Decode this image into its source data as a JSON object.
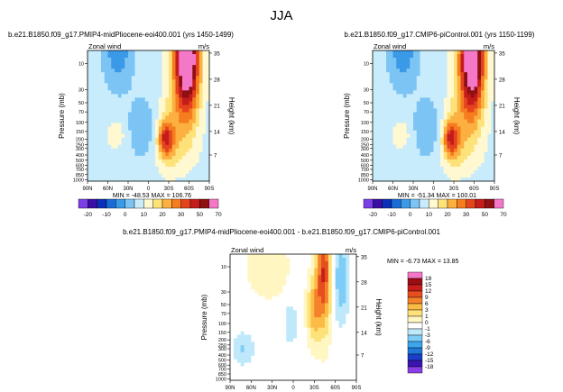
{
  "page_title": "JJA",
  "colors": {
    "top_levels": [
      "#7b3fe6",
      "#3a0fa6",
      "#0b2fb8",
      "#1b6bd6",
      "#3b9ae8",
      "#7cc4f4",
      "#c8ecfb",
      "#fff8d0",
      "#fde27a",
      "#fbb040",
      "#f57d1f",
      "#e5431e",
      "#c31c1b",
      "#8e1013",
      "#f577c8"
    ],
    "diff_levels": [
      "#8a3fe6",
      "#3b15b0",
      "#1a3ec7",
      "#1f77d8",
      "#3ba6ec",
      "#7dcdf7",
      "#bfe9fb",
      "#ffffff",
      "#fff6c2",
      "#fde27a",
      "#fbbb45",
      "#f4822a",
      "#e74e1f",
      "#c81e1b",
      "#9a0d12",
      "#f577c8"
    ]
  },
  "panels": [
    {
      "title": "b.e21.B1850.f09_g17.PMIP4-midPliocene-eoi400.001 (yrs 1450-1499)",
      "left_label": "Zonal wind",
      "units": "m/s",
      "ylabel": "Pressure (mb)",
      "ylabel_right": "Height (km)",
      "stats": "MIN = -48.53   MAX = 106.76"
    },
    {
      "title": "b.e21.B1850.f09_g17.CMIP6-piControl.001 (yrs 1150-1199)",
      "left_label": "Zonal wind",
      "units": "m/s",
      "ylabel": "Pressure (mb)",
      "ylabel_right": "Height (km)",
      "stats": "MIN = -51.34   MAX = 100.01"
    },
    {
      "title": "b.e21.B1850.f09_g17.PMIP4-midPliocene-eoi400.001  -  b.e21.B1850.f09_g17.CMIP6-piControl.001",
      "left_label": "Zonal wind",
      "units": "m/s",
      "ylabel": "Pressure (mb)",
      "ylabel_right": "Height (km)",
      "stats": "MIN = -6.73   MAX = 13.85"
    }
  ],
  "chart_data": [
    {
      "type": "heatmap",
      "title": "b.e21.B1850.f09_g17.PMIP4-midPliocene-eoi400.001 (yrs 1450-1499)",
      "x_ticks": [
        "90N",
        "60N",
        "30N",
        "0",
        "30S",
        "60S",
        "90S"
      ],
      "y_ticks": [
        "10",
        "30",
        "50",
        "70",
        "100",
        "150",
        "200",
        "250",
        "300",
        "400",
        "500",
        "600",
        "700",
        "850",
        "1000"
      ],
      "y_ticks_right": [
        "35",
        "28",
        "21",
        "14",
        "7"
      ],
      "min": -48.53,
      "max": 106.76,
      "colorbar_labels": [
        "-20",
        "-10",
        "0",
        "10",
        "20",
        "30",
        "50",
        "70"
      ]
    },
    {
      "type": "heatmap",
      "title": "b.e21.B1850.f09_g17.CMIP6-piControl.001 (yrs 1150-1199)",
      "x_ticks": [
        "90N",
        "60N",
        "30N",
        "0",
        "30S",
        "60S",
        "90S"
      ],
      "y_ticks": [
        "10",
        "30",
        "50",
        "70",
        "100",
        "150",
        "200",
        "250",
        "300",
        "400",
        "500",
        "600",
        "700",
        "850",
        "1000"
      ],
      "y_ticks_right": [
        "35",
        "28",
        "21",
        "14",
        "7"
      ],
      "min": -51.34,
      "max": 100.01,
      "colorbar_labels": [
        "-20",
        "-10",
        "0",
        "10",
        "20",
        "30",
        "50",
        "70"
      ]
    },
    {
      "type": "heatmap",
      "title": "b.e21.B1850.f09_g17.PMIP4-midPliocene-eoi400.001  -  b.e21.B1850.f09_g17.CMIP6-piControl.001",
      "x_ticks": [
        "90N",
        "60N",
        "30N",
        "0",
        "30S",
        "60S",
        "90S"
      ],
      "y_ticks": [
        "10",
        "30",
        "50",
        "70",
        "100",
        "150",
        "200",
        "250",
        "300",
        "400",
        "500",
        "600",
        "700",
        "850",
        "1000"
      ],
      "y_ticks_right": [
        "35",
        "28",
        "21",
        "14",
        "7"
      ],
      "min": -6.73,
      "max": 13.85,
      "colorbar_labels": [
        "18",
        "15",
        "12",
        "9",
        "6",
        "3",
        "1",
        "0",
        "-1",
        "-3",
        "-6",
        "-9",
        "-12",
        "-15",
        "-18"
      ]
    }
  ]
}
